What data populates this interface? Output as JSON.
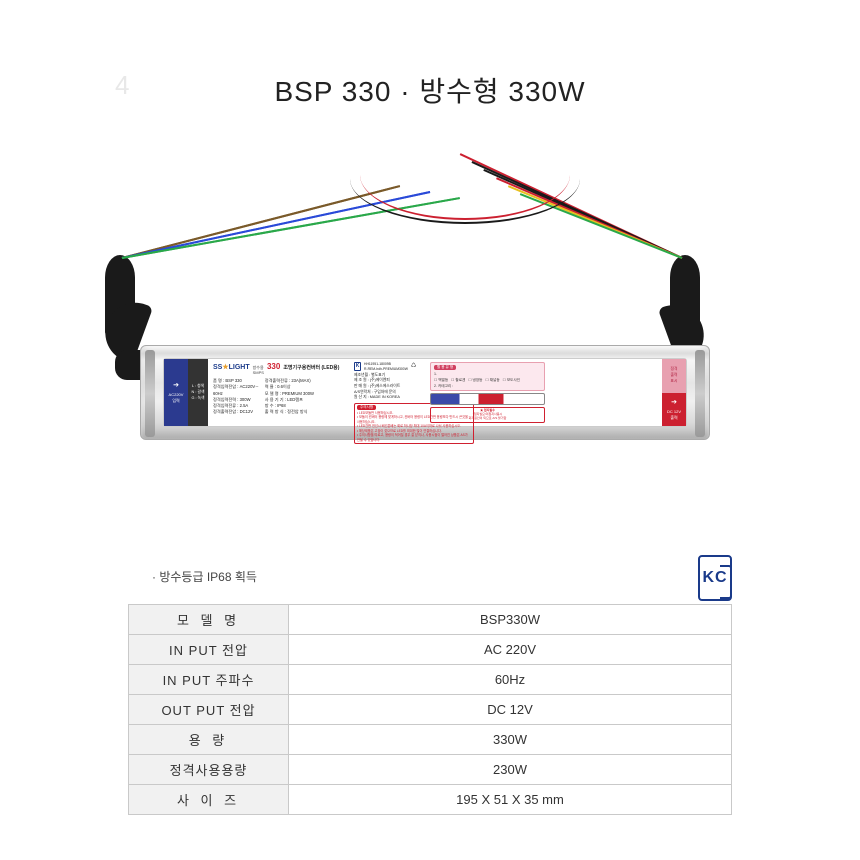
{
  "page_number": "4",
  "title": "BSP 330  · 방수형 330W",
  "product_label": {
    "input_tab": {
      "arrow": "➔",
      "line1": "AC220V",
      "line2": "입력"
    },
    "wire_legend": [
      "L : 청색",
      "N : 갈색",
      "G : 녹색"
    ],
    "logo": "SS LIGHT",
    "smps_pre": "방수용\nSMPS",
    "smps_num": "330",
    "subtitle": "조명기구용컨버터 (LED용)",
    "kc_cert": "HH11951-18009B\nR-REM-hdh-PREMIUM300W",
    "specs_col1": [
      "품         명 : BSP 330",
      "정격입력전압 : AC220V∼",
      "                      60Hz",
      "정격입력전력 : 300W",
      "정격입력전류 : 2.5A",
      "정격출력전압 : DC12V"
    ],
    "specs_col2": [
      "정격출력전류 : 23A(MAX)",
      "역         율 : 0.6이상",
      "모   델   명 : PREMIUM 300W",
      "사 용 기 기 : LED램프",
      "방         수 : IP68",
      "출 력 방 식 : 정전압 방식"
    ],
    "specs_col3": [
      "제조년월 : 별도표기",
      "제  조  원 : (주)에이엔피",
      "판  매  원 : (주)에스에스라이트",
      "A/S연락처 : 구입처에 문의",
      "원  산  지 : MADE IN KOREA"
    ],
    "caution_title": "주의사항",
    "caution_lines": [
      "• LED모듈만 사용하십시오.",
      "• 모듈이 컨버터 용량에 맞게하시고, 컨버터 용량이 LED간판 용량보다 반드시 큰것을 사용하십시오.",
      "• LED간판 전선시 배선분배는 회로 하나당 최대 10A이하로 나눠 사용하십시오.",
      "• 해당제품은 고장이 잦으므로 LED를 최대한 많이 연결하십니다.",
      "• 주의사항을 따르고, 용량이 적어질 경우 잘 닫히나, 사용시점이 떨어진 상품은 AS가 안될 수 있습니다."
    ],
    "usage_title": "활 용  유 형",
    "usage_items": [
      "백열등",
      "할로겐",
      "냉장등",
      "채널등",
      "보도사인"
    ],
    "category_label": "2. 카테고리 :",
    "warn_small_title": "★ 접지필수",
    "warn_small_text": "*접지필요/미접지사용시\n화재원인이 되므로 A/S 불가함",
    "output_top": [
      "정격",
      "출력",
      "표시"
    ],
    "output_bot": {
      "arrow": "➔",
      "line1": "DC 12V",
      "line2": "출력"
    }
  },
  "wires": {
    "left_colors": [
      "#7a5a2a",
      "#2a4ad8",
      "#2aa84a"
    ],
    "right_colors": [
      "#cc2030",
      "#1a1a1a",
      "#1a1a1a",
      "#cc2030",
      "#e8c020",
      "#2aa84a"
    ]
  },
  "spec_note": "· 방수등급 IP68 획득",
  "table": {
    "rows": [
      {
        "label": "모 델 명",
        "value": "BSP330W",
        "tight": false
      },
      {
        "label": "IN PUT 전압",
        "value": "AC 220V",
        "tight": true
      },
      {
        "label": "IN PUT 주파수",
        "value": "60Hz",
        "tight": true
      },
      {
        "label": "OUT PUT 전압",
        "value": "DC 12V",
        "tight": true
      },
      {
        "label": "용     량",
        "value": "330W",
        "tight": false
      },
      {
        "label": "정격사용용량",
        "value": "230W",
        "tight": true
      },
      {
        "label": "사 이 즈",
        "value": "195 X 51 X 35 mm",
        "tight": false
      }
    ]
  },
  "kc_text": "KC"
}
